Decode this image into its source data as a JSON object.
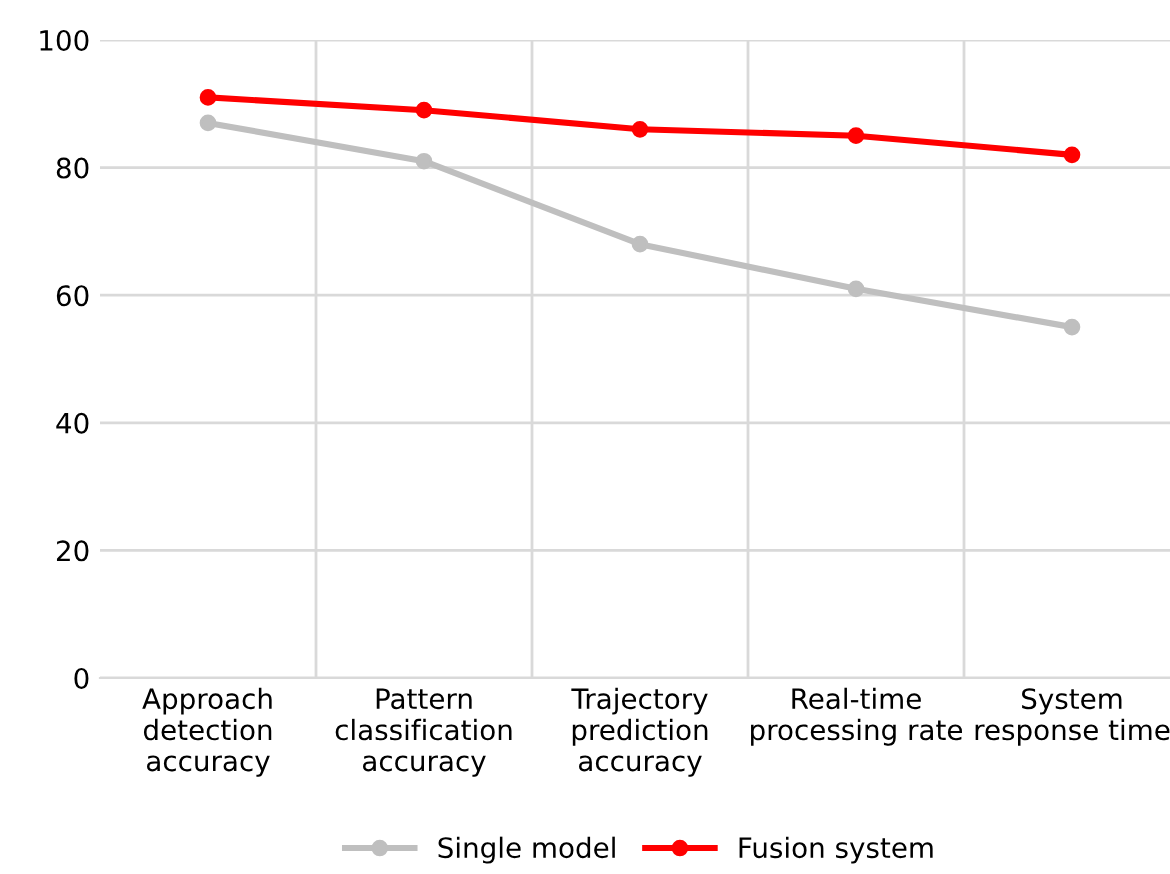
{
  "chart_data": {
    "type": "line",
    "categories": [
      "Approach\ndetection\naccuracy",
      "Pattern\nclassification\naccuracy",
      "Trajectory\nprediction\naccuracy",
      "Real-time\nprocessing rate",
      "System\nresponse time"
    ],
    "series": [
      {
        "name": "Single model",
        "color": "#bfbfbf",
        "values": [
          87,
          81,
          68,
          61,
          55
        ]
      },
      {
        "name": "Fusion system",
        "color": "#ff0000",
        "values": [
          91,
          89,
          86,
          85,
          82
        ]
      }
    ],
    "ylim": [
      0,
      100
    ],
    "yticks": [
      0,
      20,
      40,
      60,
      80,
      100
    ],
    "grid": true,
    "legend": "bottom",
    "marker": "circle",
    "line_style": "solid"
  }
}
